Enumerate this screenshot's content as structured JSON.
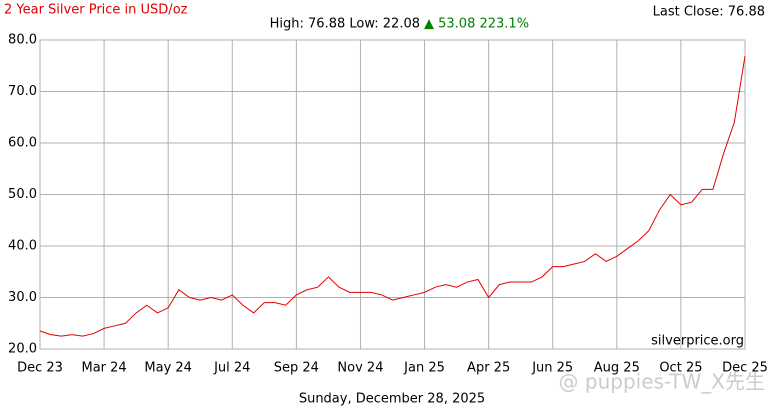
{
  "chart_data": {
    "type": "line",
    "title": "2 Year Silver Price in USD/oz",
    "last_close": "Last Close: 76.88",
    "summary": "High: 76.88 Low: 22.08",
    "change": "▲ 53.08 223.1%",
    "source": "silverprice.org",
    "date": "Sunday, December 28, 2025",
    "watermark": "@ puppies-TW_X先生",
    "categories": [
      "Dec 23",
      null,
      null,
      null,
      null,
      null,
      "Mar 24",
      null,
      null,
      null,
      null,
      null,
      "May 24",
      null,
      null,
      null,
      null,
      null,
      "Jul 24",
      null,
      null,
      null,
      null,
      null,
      "Sep 24",
      null,
      null,
      null,
      null,
      null,
      "Nov 24",
      null,
      null,
      null,
      null,
      null,
      "Jan 25",
      null,
      null,
      null,
      null,
      null,
      "Apr 25",
      null,
      null,
      null,
      null,
      null,
      "Jun 25",
      null,
      null,
      null,
      null,
      null,
      "Aug 25",
      null,
      null,
      null,
      null,
      null,
      "Oct 25",
      null,
      null,
      null,
      null,
      null,
      "Dec 25"
    ],
    "series": [
      {
        "name": "Silver",
        "color": "#e00000",
        "values": [
          23.5,
          22.8,
          22.5,
          22.8,
          22.5,
          23,
          24,
          24.5,
          25,
          27,
          28.5,
          27,
          28,
          31.5,
          30,
          29.5,
          30,
          29.5,
          30.5,
          28.5,
          27,
          29,
          29,
          28.5,
          30.5,
          31.5,
          32,
          34,
          32,
          31,
          31,
          31,
          30.5,
          29.5,
          30,
          30.5,
          31,
          32,
          32.5,
          32,
          33,
          33.5,
          30,
          32.5,
          33,
          33,
          33,
          34,
          36,
          36,
          36.5,
          37,
          38.5,
          37,
          38,
          39.5,
          41,
          43,
          47,
          50,
          48,
          48.5,
          51,
          51,
          58,
          64,
          76.88
        ]
      }
    ],
    "ylim": [
      20,
      80
    ],
    "yticks": [
      {
        "value": 20,
        "label": "20.0"
      },
      {
        "value": 30,
        "label": "30.0"
      },
      {
        "value": 40,
        "label": "40.0"
      },
      {
        "value": 50,
        "label": "50.0"
      },
      {
        "value": 60,
        "label": "60.0"
      },
      {
        "value": 70,
        "label": "70.0"
      },
      {
        "value": 80,
        "label": "80.0"
      }
    ],
    "grid": true
  }
}
